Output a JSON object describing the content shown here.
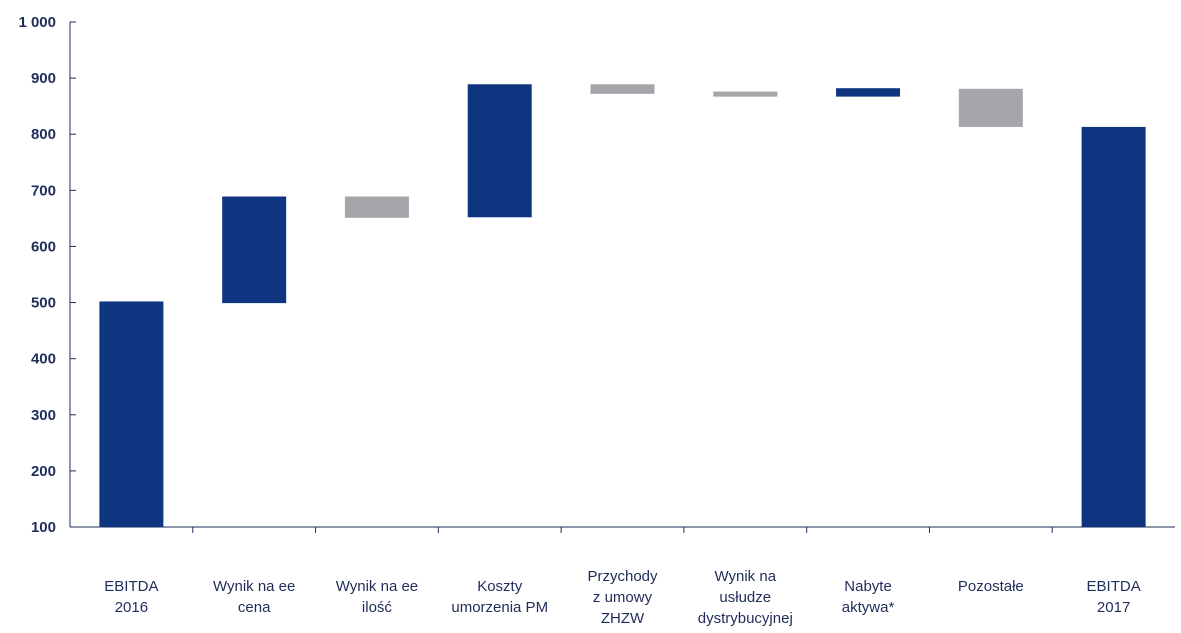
{
  "chart_data": {
    "type": "waterfall",
    "ylim": [
      100,
      1000
    ],
    "yticks": [
      100,
      200,
      300,
      400,
      500,
      600,
      700,
      800,
      900,
      1000
    ],
    "ytick_labels": [
      "100",
      "200",
      "300",
      "400",
      "500",
      "600",
      "700",
      "800",
      "900",
      "1 000"
    ],
    "colors": {
      "blue": "#0f3480",
      "gray": "#a7a4aa",
      "axis": "#1f2d5a"
    },
    "bars": [
      {
        "label_lines": [
          "EBITDA",
          "2016"
        ],
        "start": 100,
        "end": 502,
        "color": "blue"
      },
      {
        "label_lines": [
          "Wynik na ee",
          "cena"
        ],
        "start": 499,
        "end": 689,
        "color": "blue"
      },
      {
        "label_lines": [
          "Wynik na ee",
          "ilość"
        ],
        "start": 689,
        "end": 651,
        "color": "gray"
      },
      {
        "label_lines": [
          "Koszty",
          "umorzenia PM"
        ],
        "start": 652,
        "end": 889,
        "color": "blue"
      },
      {
        "label_lines": [
          "Przychody",
          "z umowy",
          "ZHZW"
        ],
        "start": 889,
        "end": 872,
        "color": "gray"
      },
      {
        "label_lines": [
          "Wynik na",
          "usłudze",
          "dystrybucyjnej"
        ],
        "start": 876,
        "end": 867,
        "color": "gray"
      },
      {
        "label_lines": [
          "Nabyte",
          "aktywa*"
        ],
        "start": 867,
        "end": 882,
        "color": "blue"
      },
      {
        "label_lines": [
          "Pozostałe"
        ],
        "start": 881,
        "end": 813,
        "color": "gray"
      },
      {
        "label_lines": [
          "EBITDA",
          "2017"
        ],
        "start": 100,
        "end": 813,
        "color": "blue"
      }
    ]
  }
}
